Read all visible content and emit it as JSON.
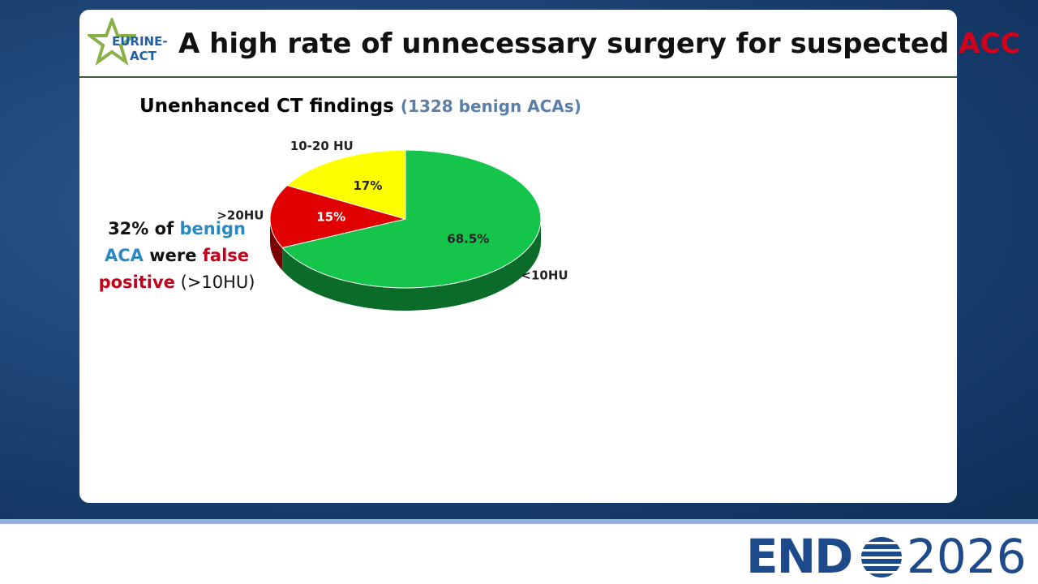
{
  "logo": {
    "line1": "EURINE-",
    "line2": "ACT"
  },
  "header": {
    "title": "A high rate of unnecessary surgery for suspected ",
    "title_highlight": "ACC"
  },
  "chart_data": {
    "type": "pie",
    "title": "Unenhanced CT findings",
    "subtitle": "(1328 benign ACAs)",
    "categories": [
      "<10HU",
      ">20HU",
      "10-20 HU"
    ],
    "values": [
      68.5,
      15,
      17
    ],
    "value_labels": [
      "68.5%",
      "15%",
      "17%"
    ],
    "colors": [
      "#14c44b",
      "#e00000",
      "#ffff00"
    ]
  },
  "annotation": [
    "32% of ",
    "benign",
    "ACA",
    " were ",
    "false",
    "positive",
    " (>10HU)"
  ],
  "footer": {
    "brand": "END",
    "year": "2026"
  }
}
